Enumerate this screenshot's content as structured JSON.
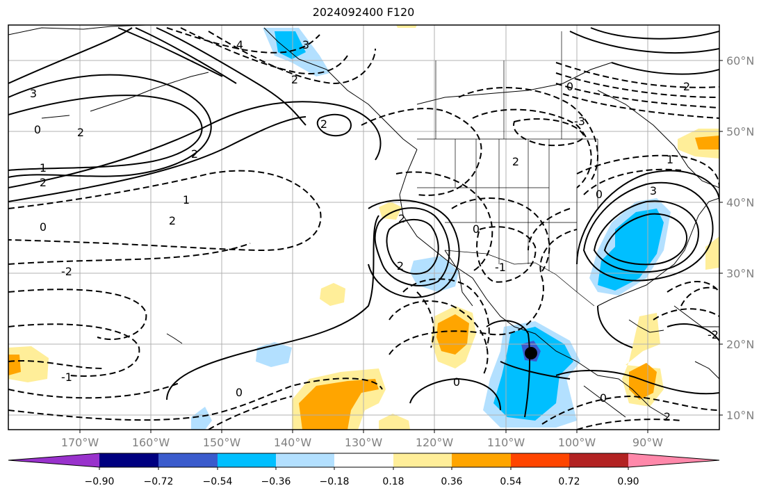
{
  "title": "2024092400 F120",
  "map": {
    "lon_range": [
      -180,
      -80
    ],
    "lat_range": [
      8,
      66
    ],
    "gridlines": true,
    "lat_labels": [
      "60°N",
      "50°N",
      "40°N",
      "30°N",
      "20°N",
      "10°N"
    ],
    "lon_labels": [
      "170°W",
      "160°W",
      "150°W",
      "140°W",
      "130°W",
      "120°W",
      "110°W",
      "100°W",
      "90°W"
    ],
    "contour_labels": [
      "3",
      "4",
      "3",
      "2",
      "2",
      "1",
      "0",
      "2",
      "1",
      "2",
      "2",
      "0",
      "2",
      "-1",
      "-2",
      "2",
      "2",
      "0",
      "3",
      "0",
      "1",
      "2",
      "-1",
      "0",
      "2",
      "0",
      "0",
      "-2",
      "-3",
      "0",
      "2"
    ],
    "colors": {
      "pos_018": "#ffee99",
      "pos_036": "#ffa500",
      "neg_018": "#b3e0ff",
      "neg_036": "#00bfff",
      "neg_054": "#3a5bcc",
      "grid": "#b0b0b0"
    }
  },
  "colorbar": {
    "ticks": [
      "−0.90",
      "−0.72",
      "−0.54",
      "−0.36",
      "−0.18",
      "0.18",
      "0.36",
      "0.54",
      "0.72",
      "0.90"
    ],
    "colors": [
      "#9932cc",
      "#000080",
      "#3a5bcc",
      "#00bfff",
      "#b3e0ff",
      "#ffffff",
      "#ffee99",
      "#ffa500",
      "#ff4500",
      "#b22222",
      "#ff88aa"
    ]
  }
}
